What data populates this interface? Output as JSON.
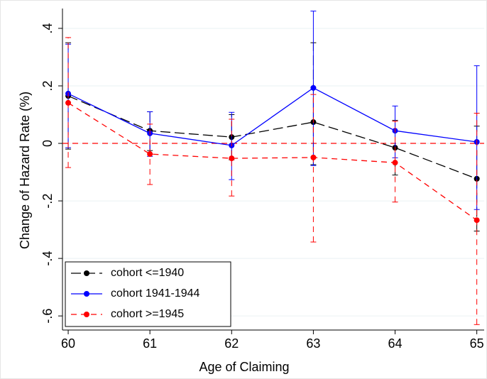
{
  "chart_data": {
    "type": "line",
    "x_label": "Age of Claiming",
    "y_label": "Change of Hazard Rate (%)",
    "x": [
      60,
      61,
      62,
      63,
      64,
      65
    ],
    "xlim": [
      59.93,
      65.09
    ],
    "xticks": [
      60,
      61,
      62,
      63,
      64,
      65
    ],
    "ylim": [
      -0.649,
      0.469
    ],
    "yticks": [
      {
        "value": -0.6,
        "label": "-.6"
      },
      {
        "value": -0.4,
        "label": "-.4"
      },
      {
        "value": -0.2,
        "label": "-.2"
      },
      0,
      {
        "value": 0.2,
        "label": ".2"
      },
      {
        "value": 0.4,
        "label": ".4"
      }
    ],
    "grid": true,
    "legend": "lower left",
    "reference_line": {
      "value": 0,
      "color": "#ff0000",
      "style": "dash"
    },
    "series": [
      {
        "name": "cohort <=1940",
        "color": "#000000",
        "style": "longdash",
        "values": [
          0.165,
          0.044,
          0.022,
          0.074,
          -0.015,
          -0.123
        ],
        "ci_low": [
          -0.02,
          -0.025,
          -0.057,
          -0.074,
          -0.11,
          -0.305
        ],
        "ci_high": [
          0.35,
          0.11,
          0.1,
          0.35,
          0.08,
          0.06
        ]
      },
      {
        "name": "cohort 1941-1944",
        "color": "#0000ff",
        "style": "solid",
        "values": [
          0.173,
          0.035,
          -0.007,
          0.193,
          0.044,
          0.005
        ],
        "ci_low": [
          -0.015,
          -0.045,
          -0.126,
          -0.077,
          -0.05,
          -0.23
        ],
        "ci_high": [
          0.345,
          0.11,
          0.108,
          0.46,
          0.13,
          0.27
        ]
      },
      {
        "name": "cohort >=1945",
        "color": "#ff0000",
        "style": "dash",
        "values": [
          0.141,
          -0.037,
          -0.052,
          -0.049,
          -0.067,
          -0.267
        ],
        "ci_low": [
          -0.084,
          -0.143,
          -0.183,
          -0.343,
          -0.204,
          -0.63
        ],
        "ci_high": [
          0.368,
          0.067,
          0.084,
          0.17,
          0.077,
          0.105
        ]
      }
    ]
  }
}
